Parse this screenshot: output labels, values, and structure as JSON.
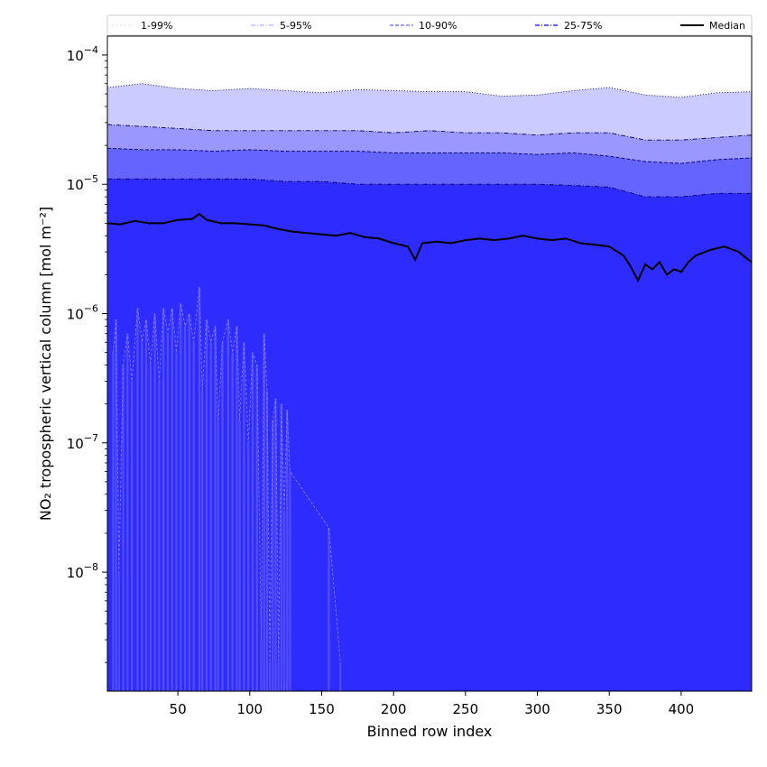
{
  "chart_data": {
    "type": "area",
    "xlabel": "Binned row index",
    "ylabel": "NO₂ tropospheric vertical column [mol m⁻²]",
    "yscale": "log",
    "xlim": [
      1,
      449
    ],
    "ylim": [
      1.2e-09,
      0.00014
    ],
    "grid": false,
    "legend_placement": "top",
    "x_ticks": [
      50,
      100,
      150,
      200,
      250,
      300,
      350,
      400
    ],
    "y_ticks": [
      {
        "exp": -8,
        "value": 1e-08
      },
      {
        "exp": -7,
        "value": 1e-07
      },
      {
        "exp": -6,
        "value": 1e-06
      },
      {
        "exp": -5,
        "value": 1e-05
      },
      {
        "exp": -4,
        "value": 0.0001
      }
    ],
    "y_tick_base": "10",
    "colors": {
      "band_1_99": "#cccbff",
      "band_5_95": "#9a98ff",
      "band_10_90": "#6564ff",
      "band_25_75": "#2e2bff",
      "low_tail": "#5752ff",
      "median": "#000000"
    },
    "series": [
      {
        "name": "1-99%",
        "style": "dotted",
        "x": [
          1,
          25,
          50,
          75,
          100,
          125,
          150,
          175,
          200,
          225,
          250,
          275,
          300,
          325,
          350,
          375,
          400,
          425,
          449
        ],
        "upper": [
          5.6e-05,
          6e-05,
          5.5e-05,
          5.3e-05,
          5.5e-05,
          5.3e-05,
          5.1e-05,
          5.4e-05,
          5.3e-05,
          5.2e-05,
          5.2e-05,
          4.8e-05,
          4.9e-05,
          5.3e-05,
          5.6e-05,
          4.9e-05,
          4.7e-05,
          5.1e-05,
          5.2e-05
        ]
      },
      {
        "name": "5-95%",
        "style": "dashdot",
        "x": [
          1,
          25,
          50,
          75,
          100,
          125,
          150,
          175,
          200,
          225,
          250,
          275,
          300,
          325,
          350,
          375,
          400,
          425,
          449
        ],
        "upper": [
          2.9e-05,
          2.8e-05,
          2.7e-05,
          2.6e-05,
          2.6e-05,
          2.6e-05,
          2.6e-05,
          2.6e-05,
          2.5e-05,
          2.6e-05,
          2.5e-05,
          2.5e-05,
          2.4e-05,
          2.5e-05,
          2.5e-05,
          2.2e-05,
          2.2e-05,
          2.3e-05,
          2.4e-05
        ]
      },
      {
        "name": "10-90%",
        "style": "dashed",
        "x": [
          1,
          25,
          50,
          75,
          100,
          125,
          150,
          175,
          200,
          225,
          250,
          275,
          300,
          325,
          350,
          375,
          400,
          425,
          449
        ],
        "upper": [
          1.9e-05,
          1.85e-05,
          1.85e-05,
          1.8e-05,
          1.85e-05,
          1.8e-05,
          1.8e-05,
          1.8e-05,
          1.75e-05,
          1.75e-05,
          1.75e-05,
          1.75e-05,
          1.7e-05,
          1.75e-05,
          1.65e-05,
          1.5e-05,
          1.45e-05,
          1.55e-05,
          1.6e-05
        ]
      },
      {
        "name": "25-75%",
        "style": "dashdot",
        "x": [
          1,
          25,
          50,
          75,
          100,
          125,
          150,
          175,
          200,
          225,
          250,
          275,
          300,
          325,
          350,
          375,
          400,
          425,
          449
        ],
        "upper": [
          1.1e-05,
          1.1e-05,
          1.1e-05,
          1.1e-05,
          1.1e-05,
          1.05e-05,
          1.05e-05,
          1e-05,
          1e-05,
          1e-05,
          1e-05,
          1e-05,
          1e-05,
          9.8e-06,
          9.5e-06,
          8e-06,
          8e-06,
          8.5e-06,
          8.5e-06
        ]
      },
      {
        "name": "Median",
        "style": "solid",
        "x": [
          1,
          10,
          20,
          30,
          40,
          50,
          60,
          65,
          70,
          80,
          90,
          100,
          110,
          120,
          130,
          140,
          150,
          160,
          170,
          180,
          190,
          200,
          210,
          215,
          220,
          230,
          240,
          250,
          260,
          270,
          280,
          290,
          300,
          310,
          320,
          330,
          340,
          350,
          360,
          365,
          370,
          375,
          380,
          385,
          390,
          395,
          400,
          405,
          410,
          420,
          430,
          440,
          445,
          449
        ],
        "values": [
          5e-06,
          4.9e-06,
          5.2e-06,
          5e-06,
          5e-06,
          5.3e-06,
          5.4e-06,
          5.9e-06,
          5.3e-06,
          5e-06,
          5e-06,
          4.9e-06,
          4.8e-06,
          4.5e-06,
          4.3e-06,
          4.2e-06,
          4.1e-06,
          4e-06,
          4.2e-06,
          3.9e-06,
          3.8e-06,
          3.5e-06,
          3.3e-06,
          2.6e-06,
          3.5e-06,
          3.6e-06,
          3.5e-06,
          3.7e-06,
          3.8e-06,
          3.7e-06,
          3.8e-06,
          4e-06,
          3.8e-06,
          3.7e-06,
          3.8e-06,
          3.5e-06,
          3.4e-06,
          3.3e-06,
          2.8e-06,
          2.3e-06,
          1.8e-06,
          2.4e-06,
          2.2e-06,
          2.5e-06,
          2e-06,
          2.2e-06,
          2.1e-06,
          2.5e-06,
          2.8e-06,
          3.1e-06,
          3.3e-06,
          3e-06,
          2.7e-06,
          2.5e-06
        ]
      },
      {
        "name": "low-tail",
        "style": "dashed",
        "spikes": [
          {
            "x": 5,
            "v": 5e-07
          },
          {
            "x": 7,
            "v": 9e-07
          },
          {
            "x": 9,
            "v": 1e-08
          },
          {
            "x": 12,
            "v": 4e-07
          },
          {
            "x": 15,
            "v": 7e-07
          },
          {
            "x": 18,
            "v": 3e-07
          },
          {
            "x": 22,
            "v": 1.1e-06
          },
          {
            "x": 25,
            "v": 6e-07
          },
          {
            "x": 28,
            "v": 9e-07
          },
          {
            "x": 31,
            "v": 4e-07
          },
          {
            "x": 34,
            "v": 1e-06
          },
          {
            "x": 37,
            "v": 3e-07
          },
          {
            "x": 40,
            "v": 1.1e-06
          },
          {
            "x": 43,
            "v": 7e-07
          },
          {
            "x": 46,
            "v": 1.1e-06
          },
          {
            "x": 49,
            "v": 5e-07
          },
          {
            "x": 52,
            "v": 1.2e-06
          },
          {
            "x": 55,
            "v": 8e-07
          },
          {
            "x": 58,
            "v": 1e-06
          },
          {
            "x": 61,
            "v": 6e-07
          },
          {
            "x": 65,
            "v": 1.6e-06
          },
          {
            "x": 67,
            "v": 2.5e-07
          },
          {
            "x": 70,
            "v": 9e-07
          },
          {
            "x": 73,
            "v": 6e-07
          },
          {
            "x": 76,
            "v": 8e-07
          },
          {
            "x": 78,
            "v": 1.4e-07
          },
          {
            "x": 81,
            "v": 6e-07
          },
          {
            "x": 85,
            "v": 9e-07
          },
          {
            "x": 88,
            "v": 5e-07
          },
          {
            "x": 91,
            "v": 8e-07
          },
          {
            "x": 93,
            "v": 1.5e-07
          },
          {
            "x": 96,
            "v": 6e-07
          },
          {
            "x": 99,
            "v": 1e-07
          },
          {
            "x": 102,
            "v": 5e-07
          },
          {
            "x": 105,
            "v": 4e-07
          },
          {
            "x": 108,
            "v": 3e-09
          },
          {
            "x": 110,
            "v": 7e-07
          },
          {
            "x": 112,
            "v": 2.5e-07
          },
          {
            "x": 114,
            "v": 2e-09
          },
          {
            "x": 116,
            "v": 1.5e-07
          },
          {
            "x": 118,
            "v": 2.2e-07
          },
          {
            "x": 120,
            "v": 2e-09
          },
          {
            "x": 122,
            "v": 2e-07
          },
          {
            "x": 124,
            "v": 3e-08
          },
          {
            "x": 126,
            "v": 1.8e-07
          },
          {
            "x": 128,
            "v": 6e-08
          },
          {
            "x": 155,
            "v": 2.2e-08
          },
          {
            "x": 163,
            "v": 2e-09
          }
        ]
      }
    ],
    "legend": [
      "1-99%",
      "5-95%",
      "10-90%",
      "25-75%",
      "Median"
    ]
  }
}
